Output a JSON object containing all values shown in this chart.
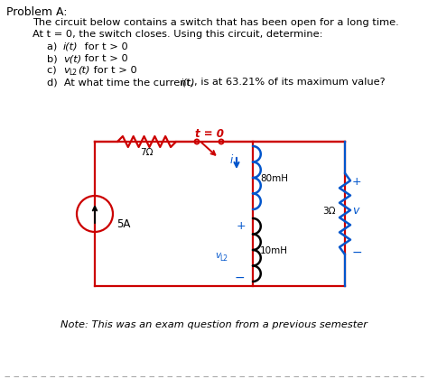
{
  "title": "Problem A:",
  "line1": "The circuit below contains a switch that has been open for a long time.",
  "line2": "At t = 0, the switch closes. Using this circuit, determine:",
  "bg_color": "#ffffff",
  "text_color": "#000000",
  "red_color": "#cc0000",
  "blue_color": "#0055cc",
  "gray_color": "#aaaaaa",
  "note": "Note: This was an exam question from a previous semester",
  "resistor1_label": "7Ω",
  "inductor1_label": "80mH",
  "inductor2_label": "10mH",
  "resistor2_label": "3Ω",
  "current_source_label": "5A",
  "t_label": "t = 0"
}
